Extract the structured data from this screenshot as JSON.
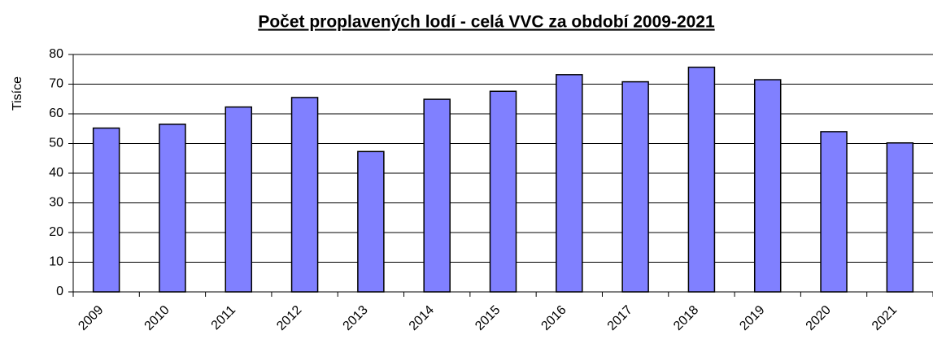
{
  "chart_data": {
    "type": "bar",
    "title": "Počet proplavených lodí  - celá VVC za období 2009-2021",
    "y_label": "Tisíce",
    "categories": [
      "2009",
      "2010",
      "2011",
      "2012",
      "2013",
      "2014",
      "2015",
      "2016",
      "2017",
      "2018",
      "2019",
      "2020",
      "2021"
    ],
    "values": [
      55.2,
      56.5,
      62.3,
      65.5,
      47.3,
      64.9,
      67.6,
      73.2,
      70.8,
      75.7,
      71.5,
      54.0,
      50.2
    ],
    "color": "#8080ff",
    "ylim": [
      0,
      80
    ],
    "yticks": [
      0,
      10,
      20,
      30,
      40,
      50,
      60,
      70,
      80
    ],
    "grid": true
  }
}
